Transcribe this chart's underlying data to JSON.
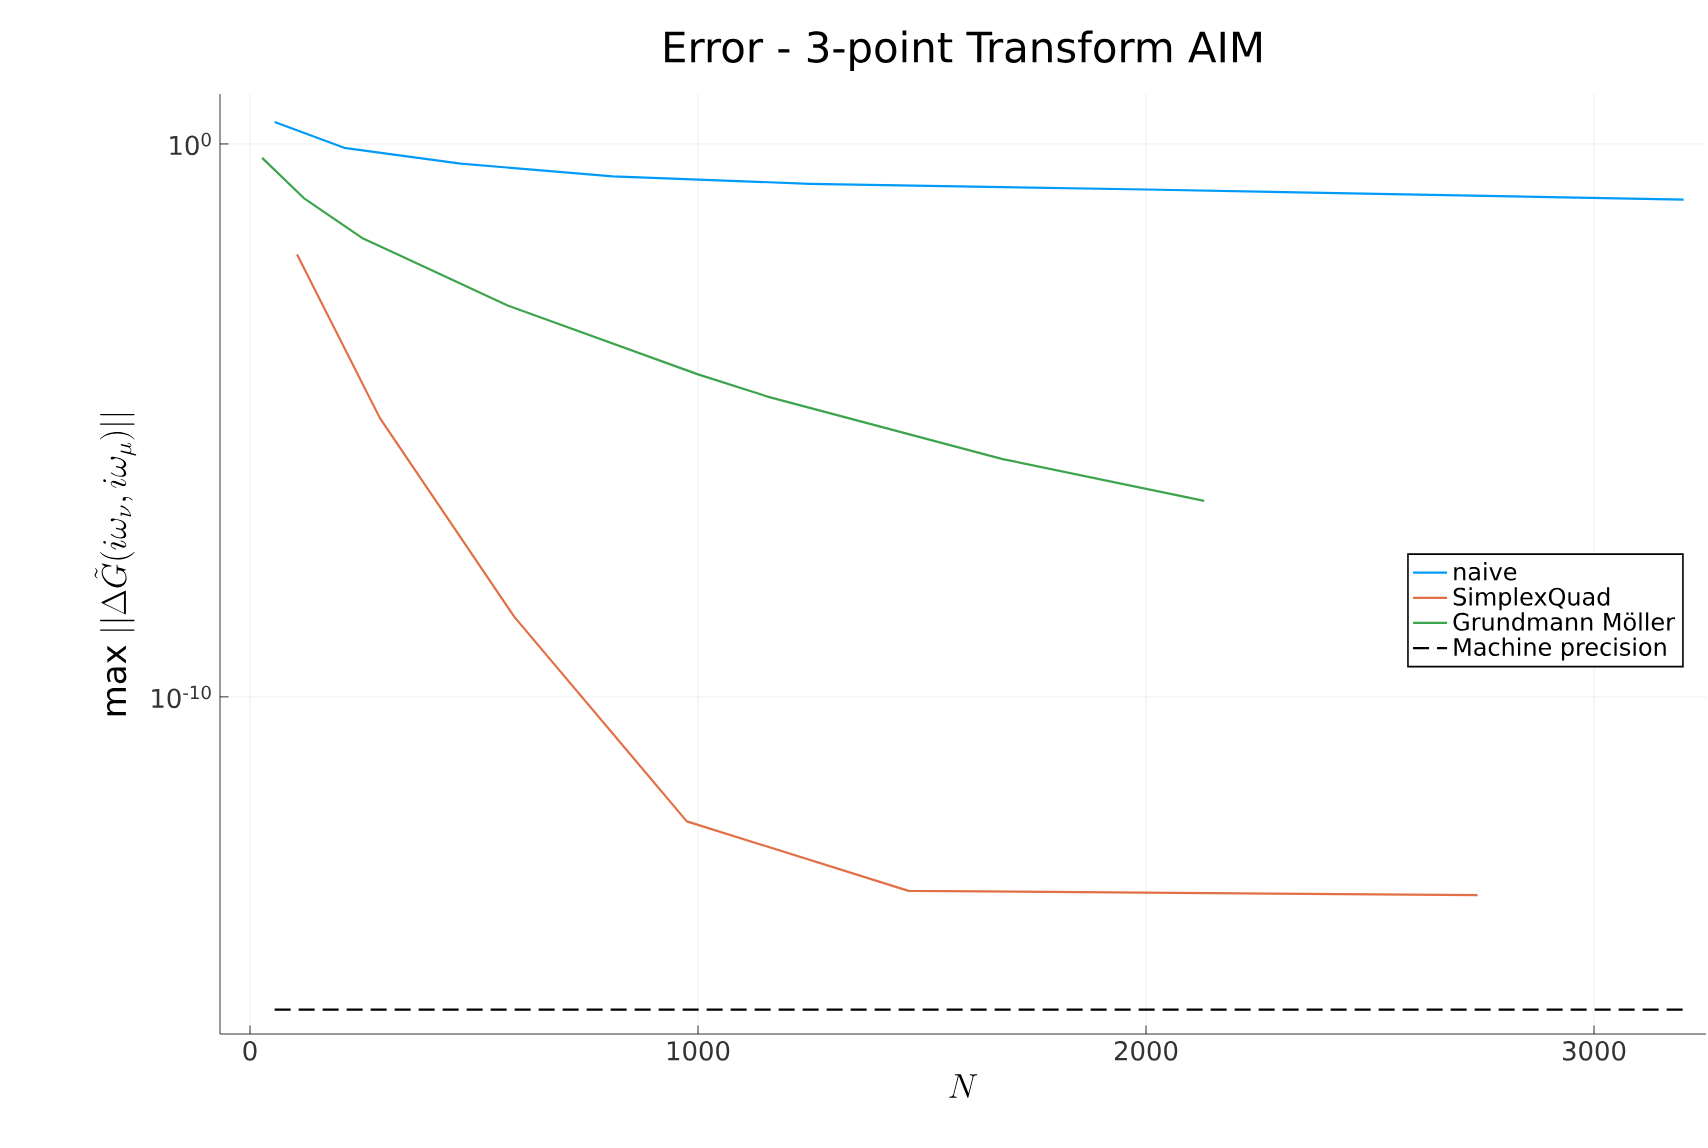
{
  "chart_data": {
    "type": "line",
    "title": "Error - 3-point Transform AIM",
    "xlabel": "N",
    "ylabel": "\\mathrm{max}\\;||\\Delta\\tilde{G}(i\\omega_{\\nu},i\\omega_{\\mu})||",
    "log": "y",
    "grid": true,
    "legend": "right",
    "xlim": [
      -67,
      3250
    ],
    "ylim": [
      8e-17,
      8
    ],
    "xticks": [
      0,
      1000,
      2000,
      3000
    ],
    "yticks": [
      {
        "value": 1,
        "label": "10$^{0}$"
      },
      {
        "value": 1e-10,
        "label": "10$^{-10}$"
      }
    ],
    "series": [
      {
        "name": "naive",
        "color": "#009af9",
        "x": [
          55,
          210,
          470,
          810,
          1250,
          2000,
          3200
        ],
        "values": [
          2.5,
          0.85,
          0.44,
          0.26,
          0.19,
          0.15,
          0.098
        ]
      },
      {
        "name": "SimplexQuad",
        "color": "#e26f46",
        "x": [
          105,
          290,
          590,
          975,
          1470,
          2740
        ],
        "values": [
          0.01,
          1.1e-05,
          2.8e-09,
          5.6e-13,
          3.1e-14,
          2.6e-14
        ]
      },
      {
        "name": "Grundmann Möller",
        "color": "#3da44d",
        "x": [
          27,
          120,
          250,
          575,
          1000,
          1155,
          1680,
          2130
        ],
        "values": [
          0.56,
          0.105,
          0.02,
          0.0012,
          6.8e-05,
          2.7e-05,
          2e-06,
          3.5e-07
        ]
      },
      {
        "name": "Machine precision",
        "color": "#000000",
        "line_style": "dashed",
        "x": [
          55,
          3200
        ],
        "values": [
          2.2e-16,
          2.2e-16
        ]
      }
    ]
  }
}
